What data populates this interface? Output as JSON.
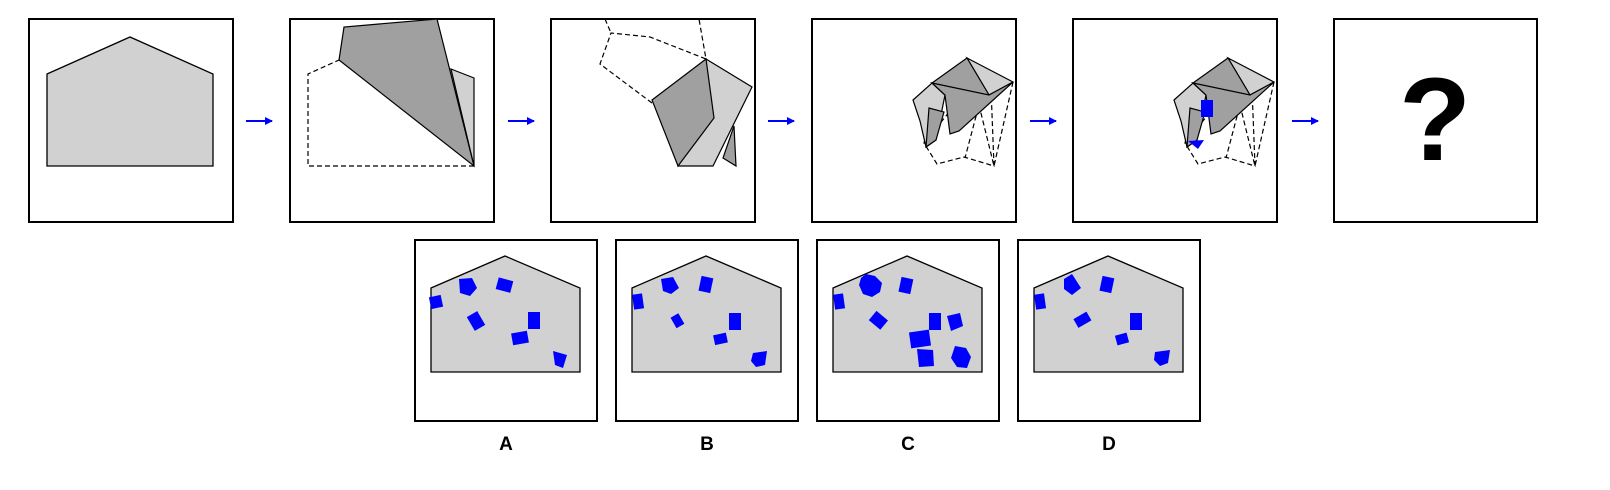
{
  "question_mark": "?",
  "options": [
    {
      "label": "A"
    },
    {
      "label": "B"
    },
    {
      "label": "C"
    },
    {
      "label": "D"
    }
  ],
  "colors": {
    "paper": "#d1d1d1",
    "paper_folded": "#a0a0a0",
    "hole": "#0000ff",
    "arrow": "#0000ff",
    "frame": "#000000"
  }
}
